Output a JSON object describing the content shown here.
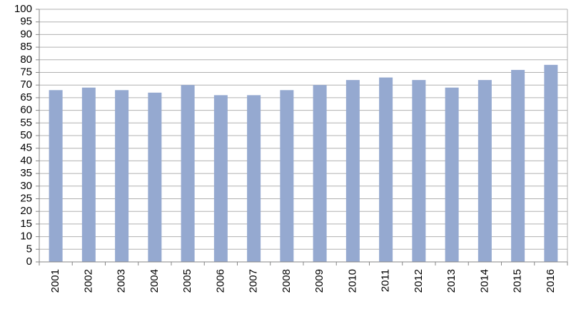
{
  "chart_data": {
    "type": "bar",
    "categories": [
      "2001",
      "2002",
      "2003",
      "2004",
      "2005",
      "2006",
      "2007",
      "2008",
      "2009",
      "2010",
      "2011",
      "2012",
      "2013",
      "2014",
      "2015",
      "2016"
    ],
    "values": [
      68,
      69,
      68,
      67,
      70,
      66,
      66,
      68,
      70,
      72,
      73,
      72,
      69,
      72,
      76,
      78
    ],
    "color": "#95a9d0",
    "ylim": [
      0,
      100
    ],
    "yticks": [
      0,
      5,
      10,
      15,
      20,
      25,
      30,
      35,
      40,
      45,
      50,
      55,
      60,
      65,
      70,
      75,
      80,
      85,
      90,
      95,
      100
    ],
    "grid": true
  }
}
